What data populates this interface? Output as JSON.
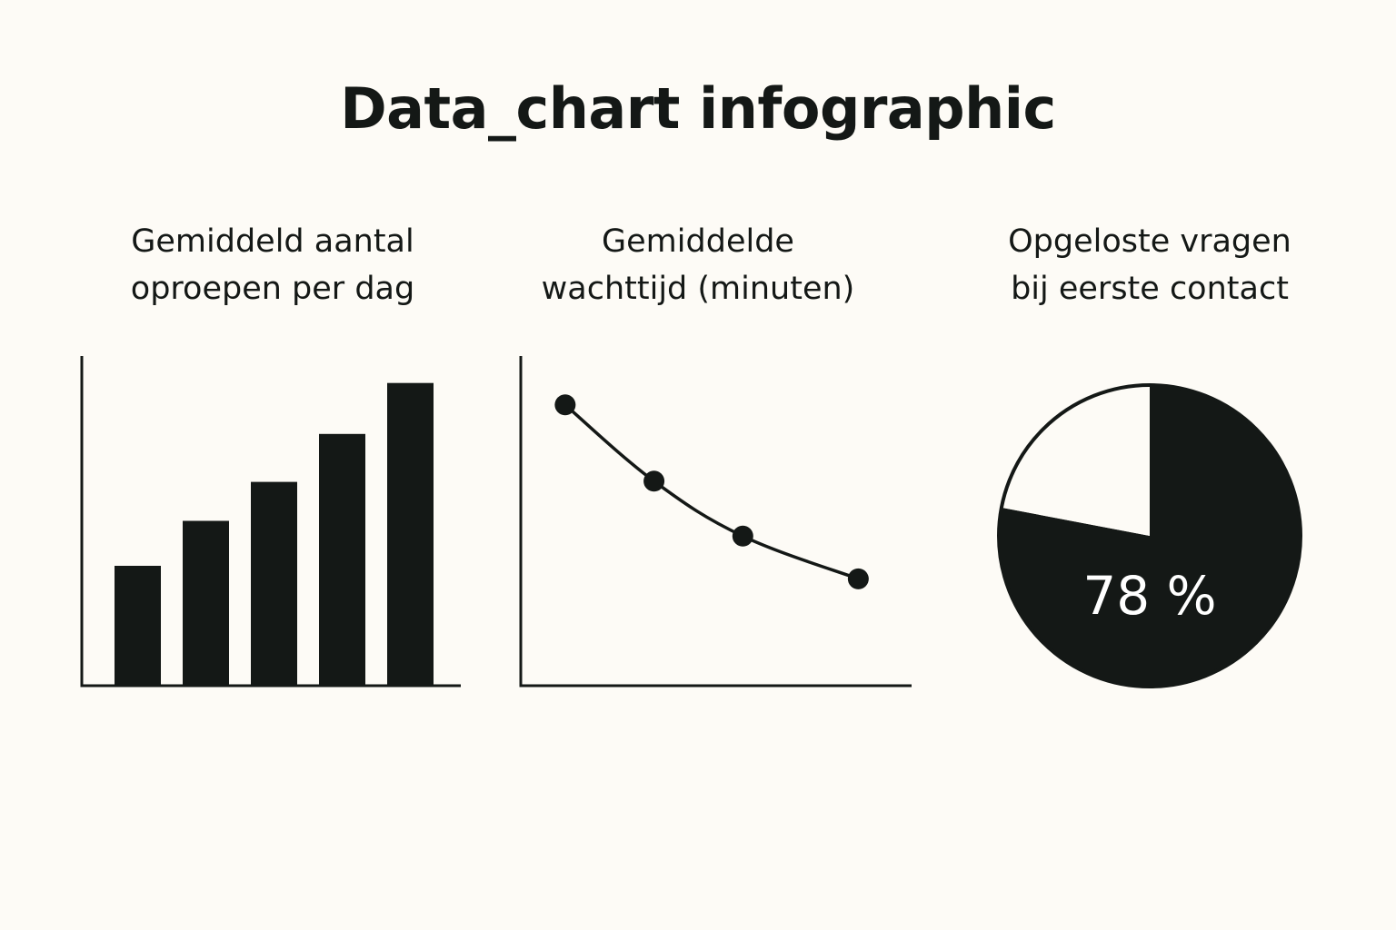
{
  "page": {
    "title": "Data_chart infographic"
  },
  "colors": {
    "background": "#fdfbf6",
    "ink": "#141816",
    "pie_remainder": "#fdfbf6",
    "pie_label": "#ffffff"
  },
  "chart_data": [
    {
      "type": "bar",
      "title_lines": [
        "Gemiddeld aantal",
        "oproepen per dag"
      ],
      "categories": [
        "",
        "",
        "",
        "",
        ""
      ],
      "values": [
        40,
        55,
        68,
        84,
        101
      ],
      "ylim": [
        0,
        110
      ],
      "xlabel": "",
      "ylabel": "",
      "grid": false,
      "legend": "none"
    },
    {
      "type": "line",
      "title_lines": [
        "Gemiddelde",
        "wachttijd (minuten)"
      ],
      "x": [
        1,
        2,
        3,
        4.3
      ],
      "values": [
        9.2,
        6.7,
        4.9,
        3.5
      ],
      "xlim": [
        0.5,
        4.9
      ],
      "ylim": [
        0,
        10.8
      ],
      "xlabel": "",
      "ylabel": "",
      "grid": false,
      "legend": "none"
    },
    {
      "type": "pie",
      "title_lines": [
        "Opgeloste vragen",
        "bij eerste contact"
      ],
      "slices": [
        {
          "value": 78,
          "label": "78 %",
          "color": "#141816"
        },
        {
          "value": 22,
          "label": "",
          "color": "#fdfbf6"
        }
      ],
      "legend": "none"
    }
  ]
}
